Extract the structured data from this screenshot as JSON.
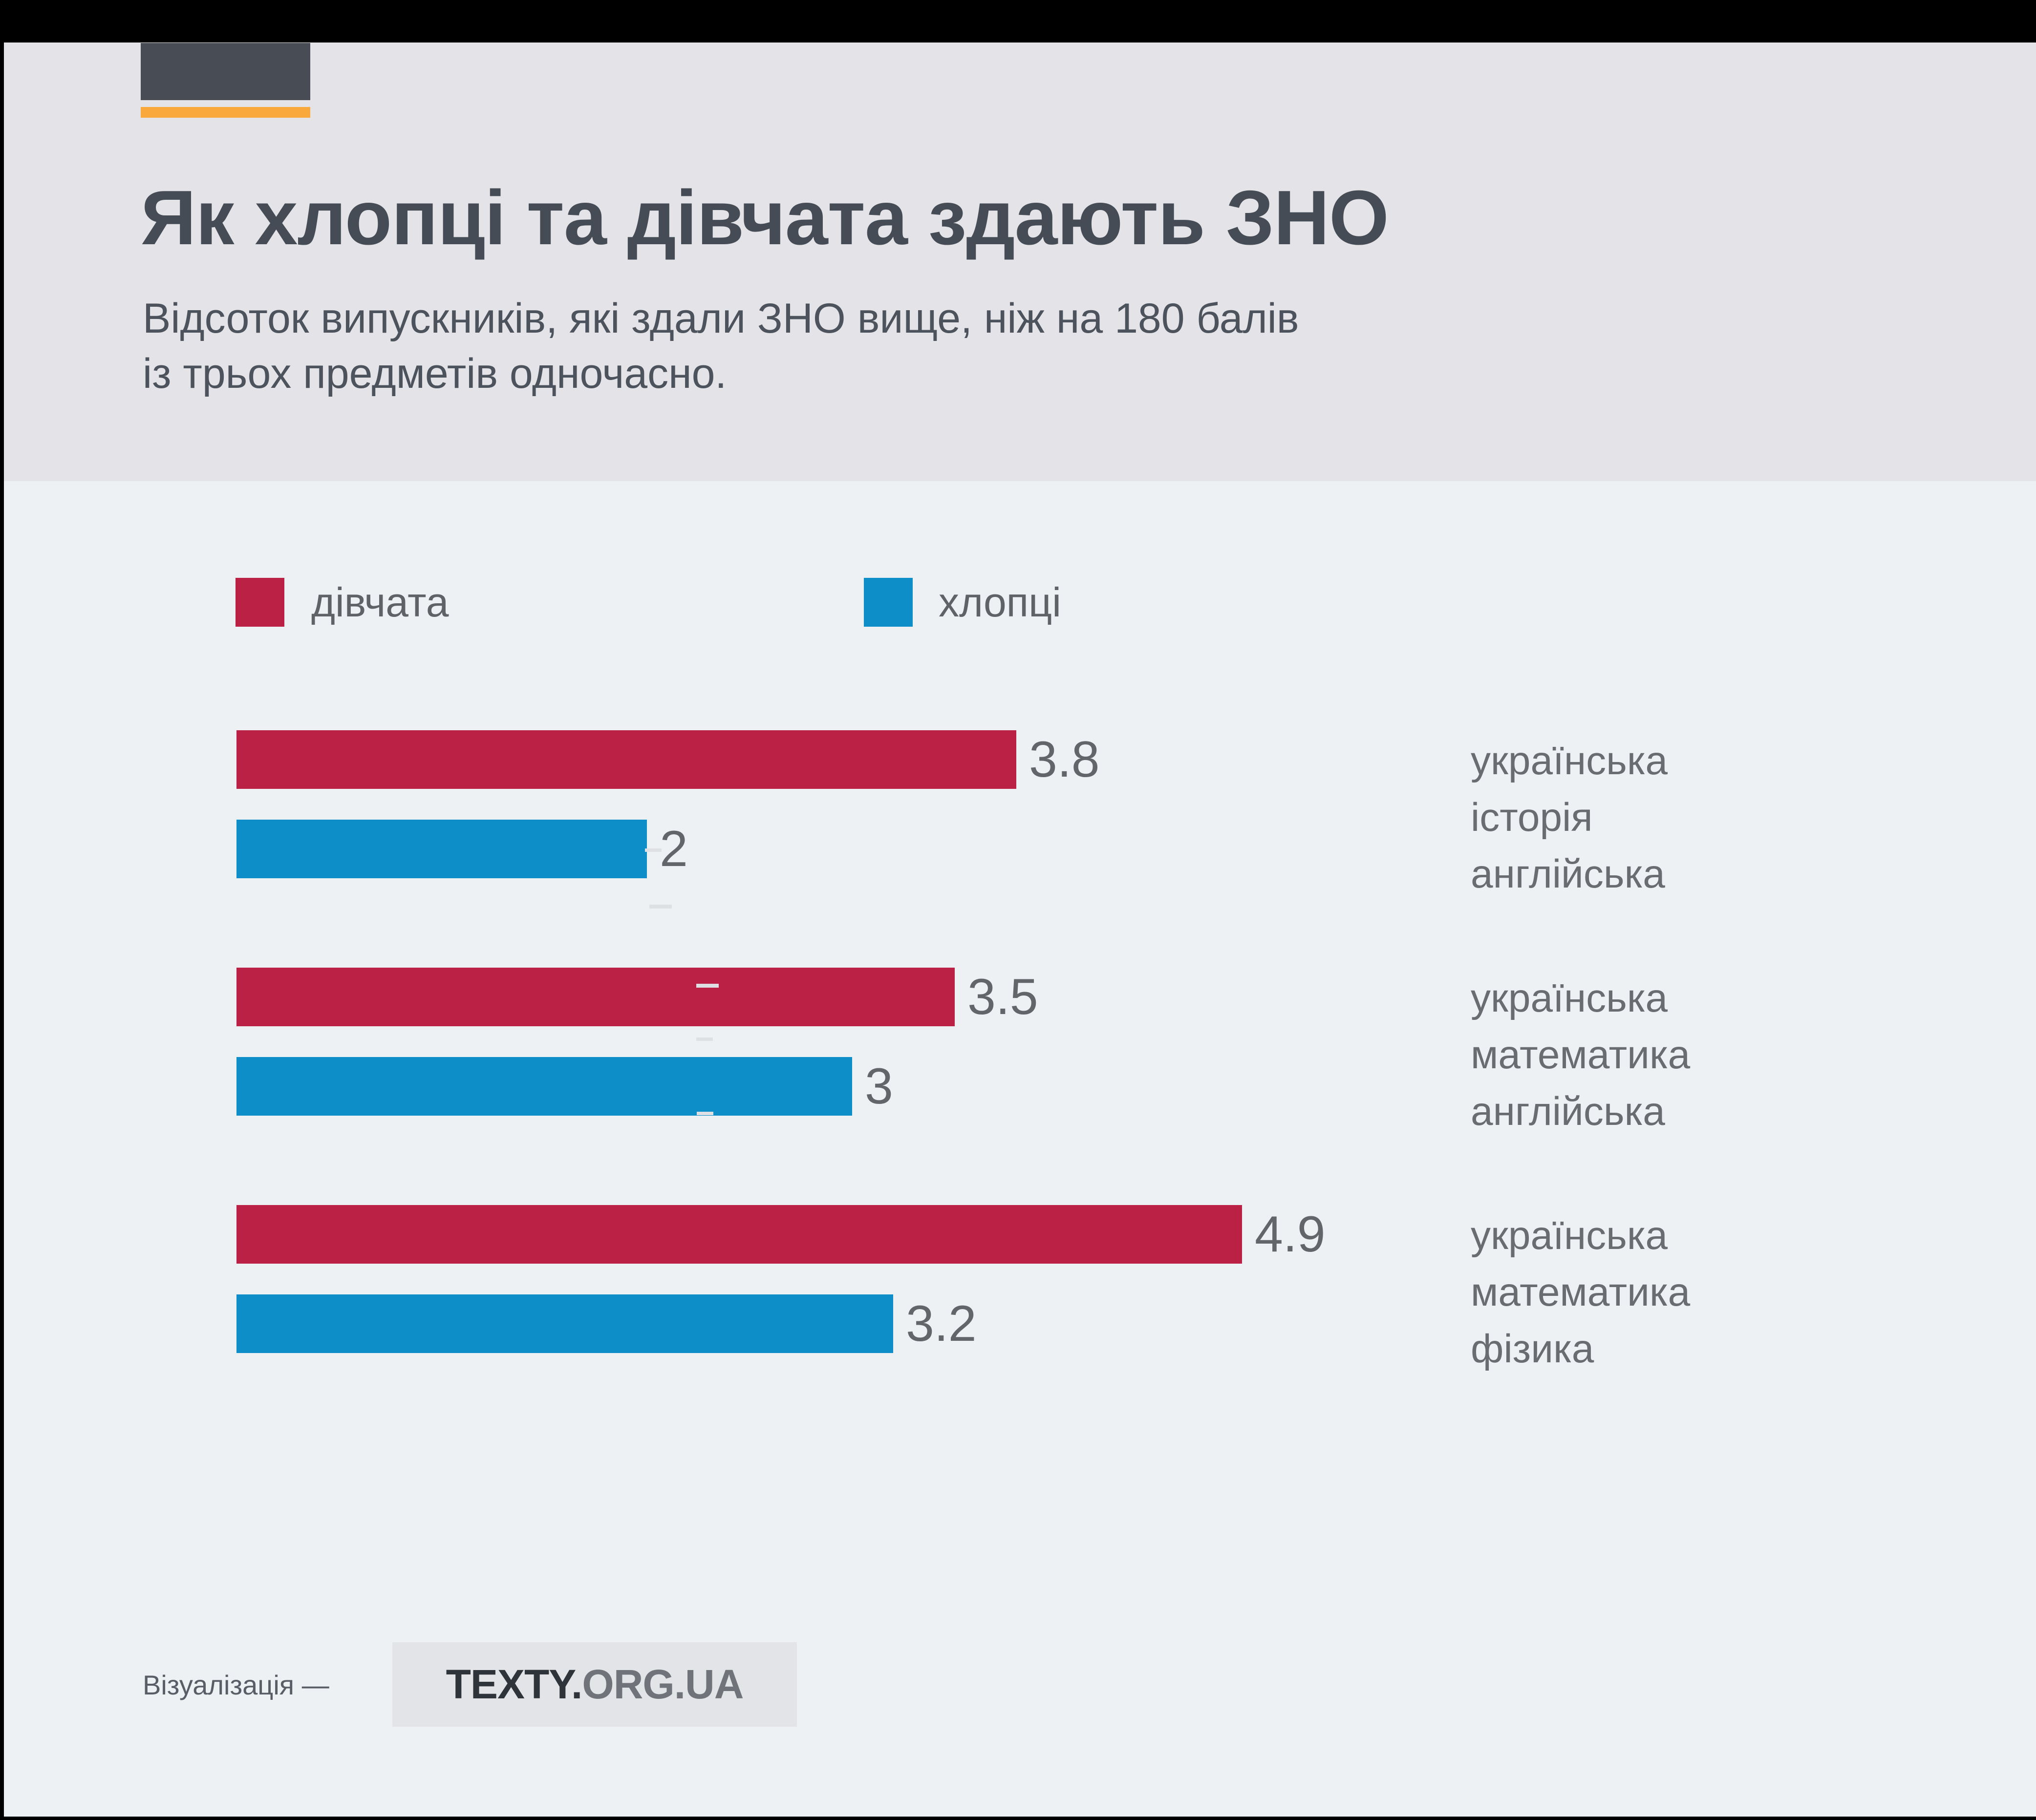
{
  "page": {
    "background_color": "#eef1f4",
    "header_band_color": "#e4e4e8",
    "frame_color": "#000000"
  },
  "header": {
    "logo_block_color": "#474c55",
    "logo_accent_color": "#f9a83b",
    "title": "Як хлопці та дівчата здають ЗНО",
    "subtitle_line1": "Відсоток випускників, які здали ЗНО вище, ніж на 180 балів",
    "subtitle_line2": "із трьох предметів одночасно."
  },
  "legend": {
    "girls_label": "дівчата",
    "boys_label": "хлопці",
    "girls_color": "#ba2144",
    "boys_color": "#0e8ec9"
  },
  "chart_data": {
    "type": "bar",
    "orientation": "horizontal",
    "title": "Як хлопці та дівчата здають ЗНО",
    "subtitle": "Відсоток випускників, які здали ЗНО вище, ніж на 180 балів із трьох предметів одночасно.",
    "unit": "percent of graduates",
    "xlim": [
      0,
      5
    ],
    "grid": false,
    "legend_position": "top",
    "series_names": [
      "дівчата",
      "хлопці"
    ],
    "categories": [
      [
        "українська",
        "історія",
        "англійська"
      ],
      [
        "українська",
        "математика",
        "англійська"
      ],
      [
        "українська",
        "математика",
        "фізика"
      ]
    ],
    "groups": [
      {
        "subjects": [
          "українська",
          "історія",
          "англійська"
        ],
        "girls": 3.8,
        "girls_label": "3.8",
        "boys": 2,
        "boys_label": "2"
      },
      {
        "subjects": [
          "українська",
          "математика",
          "англійська"
        ],
        "girls": 3.5,
        "girls_label": "3.5",
        "boys": 3,
        "boys_label": "3"
      },
      {
        "subjects": [
          "українська",
          "математика",
          "фізика"
        ],
        "girls": 4.9,
        "girls_label": "4.9",
        "boys": 3.2,
        "boys_label": "3.2"
      }
    ]
  },
  "footer": {
    "credit": "Візуалізація —",
    "brand_primary": "TEXTY.",
    "brand_secondary": "ORG.UA"
  }
}
